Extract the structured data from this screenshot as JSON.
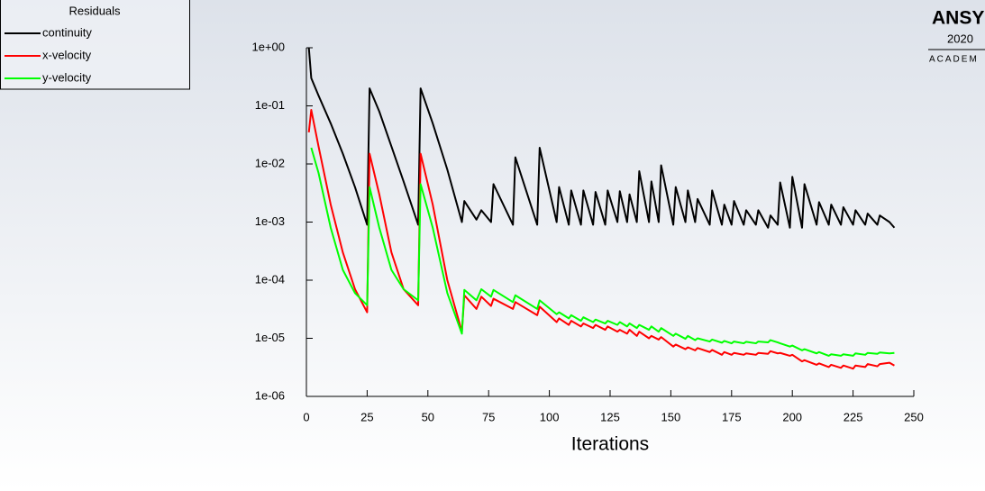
{
  "chart_data": {
    "type": "line",
    "legend_title": "Residuals",
    "xlabel": "Iterations",
    "branding": [
      "ANSY",
      "2020",
      "ACADEM"
    ],
    "log_y": true,
    "legend": "top-left",
    "xlim": [
      0,
      250
    ],
    "xticks": [
      0,
      25,
      50,
      75,
      100,
      125,
      150,
      175,
      200,
      225,
      250
    ],
    "ylim": [
      1e-06,
      1
    ],
    "yticks": [
      {
        "value": 1e-06,
        "label": "1e-06"
      },
      {
        "value": 1e-05,
        "label": "1e-05"
      },
      {
        "value": 0.0001,
        "label": "1e-04"
      },
      {
        "value": 0.001,
        "label": "1e-03"
      },
      {
        "value": 0.01,
        "label": "1e-02"
      },
      {
        "value": 0.1,
        "label": "1e-01"
      },
      {
        "value": 1,
        "label": "1e+00"
      }
    ],
    "x": [
      1,
      2,
      5,
      10,
      15,
      20,
      25,
      26,
      30,
      35,
      40,
      46,
      47,
      52,
      58,
      64,
      65,
      70,
      72,
      76,
      77,
      85,
      86,
      95,
      96,
      103,
      104,
      108,
      109,
      113,
      114,
      118,
      119,
      123,
      124,
      128,
      129,
      132,
      133,
      136,
      137,
      141,
      142,
      145,
      146,
      151,
      152,
      156,
      157,
      160,
      161,
      166,
      167,
      171,
      172,
      175,
      176,
      180,
      181,
      185,
      186,
      190,
      191,
      194,
      195,
      199,
      200,
      204,
      205,
      210,
      211,
      215,
      216,
      220,
      221,
      225,
      226,
      230,
      231,
      235,
      236,
      240,
      242
    ],
    "series": [
      {
        "name": "continuity",
        "color": "#000000",
        "values": [
          1,
          0.3,
          0.15,
          0.05,
          0.015,
          0.004,
          0.0009,
          0.2,
          0.08,
          0.02,
          0.005,
          0.0009,
          0.2,
          0.05,
          0.008,
          0.001,
          0.0023,
          0.0011,
          0.0016,
          0.001,
          0.0045,
          0.0009,
          0.013,
          0.0009,
          0.019,
          0.001,
          0.004,
          0.0009,
          0.0035,
          0.0009,
          0.0035,
          0.0009,
          0.0033,
          0.0009,
          0.0035,
          0.001,
          0.0034,
          0.001,
          0.003,
          0.001,
          0.0075,
          0.001,
          0.005,
          0.001,
          0.0095,
          0.0009,
          0.004,
          0.001,
          0.0035,
          0.001,
          0.0025,
          0.0009,
          0.0035,
          0.0009,
          0.002,
          0.0009,
          0.0023,
          0.0009,
          0.0016,
          0.0009,
          0.0016,
          0.0008,
          0.0013,
          0.0009,
          0.0048,
          0.0008,
          0.006,
          0.0008,
          0.0045,
          0.0009,
          0.0022,
          0.0009,
          0.002,
          0.0009,
          0.0018,
          0.0009,
          0.0016,
          0.0009,
          0.0014,
          0.0009,
          0.0013,
          0.001,
          0.0008
        ]
      },
      {
        "name": "x-velocity",
        "color": "#ff0000",
        "values": [
          0.035,
          0.085,
          0.02,
          0.002,
          0.0003,
          7e-05,
          2.8e-05,
          0.015,
          0.003,
          0.0003,
          7e-05,
          3.7e-05,
          0.015,
          0.002,
          0.0001,
          1.3e-05,
          5.5e-05,
          3.2e-05,
          5.2e-05,
          3.6e-05,
          4.8e-05,
          3.2e-05,
          4.2e-05,
          2.5e-05,
          3.5e-05,
          1.9e-05,
          2.2e-05,
          1.7e-05,
          2e-05,
          1.6e-05,
          1.8e-05,
          1.5e-05,
          1.7e-05,
          1.4e-05,
          1.6e-05,
          1.3e-05,
          1.4e-05,
          1.2e-05,
          1.4e-05,
          1.1e-05,
          1.3e-05,
          1e-05,
          1.1e-05,
          9.5e-06,
          1.05e-05,
          7.2e-06,
          7.8e-06,
          6.5e-06,
          7e-06,
          6.2e-06,
          6.8e-06,
          5.8e-06,
          6.3e-06,
          5.2e-06,
          5.8e-06,
          5.2e-06,
          5.6e-06,
          5.2e-06,
          5.5e-06,
          5.2e-06,
          5.6e-06,
          5.4e-06,
          6e-06,
          5.5e-06,
          5.6e-06,
          5e-06,
          5.2e-06,
          4e-06,
          4.2e-06,
          3.5e-06,
          3.7e-06,
          3.2e-06,
          3.5e-06,
          3.1e-06,
          3.4e-06,
          3e-06,
          3.4e-06,
          3.2e-06,
          3.6e-06,
          3.3e-06,
          3.6e-06,
          3.8e-06,
          3.4e-06
        ]
      },
      {
        "name": "y-velocity",
        "color": "#00ff00",
        "values": [
          null,
          0.019,
          0.007,
          0.0008,
          0.00015,
          6e-05,
          3.7e-05,
          0.004,
          0.0008,
          0.00015,
          7e-05,
          4.5e-05,
          0.0045,
          0.0008,
          6e-05,
          1.2e-05,
          6.8e-05,
          4.5e-05,
          7e-05,
          5.2e-05,
          6.8e-05,
          4.2e-05,
          5.5e-05,
          3.2e-05,
          4.5e-05,
          2.6e-05,
          2.8e-05,
          2.2e-05,
          2.5e-05,
          2e-05,
          2.3e-05,
          1.9e-05,
          2.1e-05,
          1.8e-05,
          2e-05,
          1.7e-05,
          1.9e-05,
          1.6e-05,
          1.8e-05,
          1.5e-05,
          1.7e-05,
          1.4e-05,
          1.6e-05,
          1.3e-05,
          1.5e-05,
          1.1e-05,
          1.2e-05,
          9.8e-06,
          1.1e-05,
          9.3e-06,
          1e-05,
          8.8e-06,
          9.5e-06,
          8.4e-06,
          9e-06,
          8.2e-06,
          8.8e-06,
          8.2e-06,
          8.7e-06,
          8.2e-06,
          8.8e-06,
          8.5e-06,
          9.3e-06,
          8.5e-06,
          8.2e-06,
          7.2e-06,
          7.5e-06,
          6.2e-06,
          6.5e-06,
          5.5e-06,
          5.8e-06,
          5e-06,
          5.3e-06,
          5e-06,
          5.3e-06,
          5e-06,
          5.5e-06,
          5.2e-06,
          5.6e-06,
          5.4e-06,
          5.7e-06,
          5.5e-06,
          5.6e-06
        ]
      }
    ]
  }
}
